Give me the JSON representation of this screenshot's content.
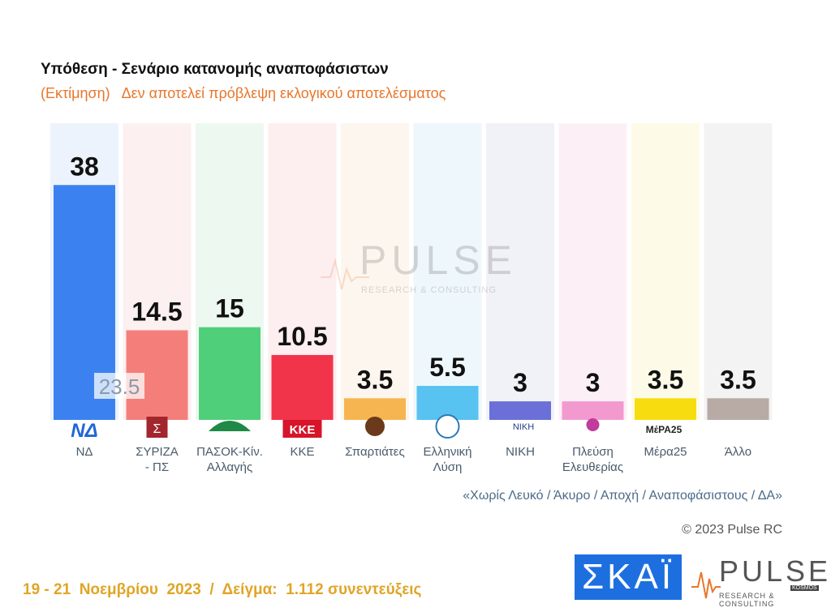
{
  "header": {
    "title": "Υπόθεση - Σενάριο κατανομής αναποφάσιστων",
    "subtitle": "(Εκτίμηση)   Δεν αποτελεί πρόβλεψη εκλογικού αποτελέσματος"
  },
  "chart_data": {
    "type": "bar",
    "categories": [
      "ΝΔ",
      "ΣΥΡΙΖΑ - ΠΣ",
      "ΠΑΣΟΚ-Κίν. Αλλαγής",
      "ΚΚΕ",
      "Σπαρτιάτες",
      "Ελληνική Λύση",
      "ΝΙΚΗ",
      "Πλεύση Ελευθερίας",
      "Μέρα25",
      "Άλλο"
    ],
    "category_lines": [
      [
        "ΝΔ"
      ],
      [
        "ΣΥΡΙΖΑ",
        "- ΠΣ"
      ],
      [
        "ΠΑΣΟΚ-Κίν.",
        "Αλλαγής"
      ],
      [
        "ΚΚΕ"
      ],
      [
        "Σπαρτιάτες"
      ],
      [
        "Ελληνική",
        "Λύση"
      ],
      [
        "ΝΙΚΗ"
      ],
      [
        "Πλεύση",
        "Ελευθερίας"
      ],
      [
        "Μέρα25"
      ],
      [
        "Άλλο"
      ]
    ],
    "values": [
      38,
      14.5,
      15,
      10.5,
      3.5,
      5.5,
      3,
      3,
      3.5,
      3.5
    ],
    "value_labels": [
      "38",
      "14.5",
      "15",
      "10.5",
      "3.5",
      "5.5",
      "3",
      "3",
      "3.5",
      "3.5"
    ],
    "colors": [
      "#3b82f0",
      "#f47f7a",
      "#4fcf7a",
      "#f2344a",
      "#f6b550",
      "#58c2f1",
      "#6b6fd8",
      "#f29ad0",
      "#f7dd10",
      "#b8aaa4"
    ],
    "background_colors": [
      "#edf3fd",
      "#fdf0f0",
      "#edf8f0",
      "#fdeef0",
      "#fdf6ee",
      "#eef7fc",
      "#f1f1f8",
      "#fcf0f6",
      "#fdfbe8",
      "#f4f3f3"
    ],
    "annotations": [
      {
        "category": "ΝΔ",
        "text": "23.5"
      }
    ],
    "ylim": [
      0,
      48
    ],
    "title": "Υπόθεση - Σενάριο κατανομής αναποφάσιστων",
    "xlabel": "",
    "ylabel": "",
    "grid": false,
    "legend": "none"
  },
  "logos": [
    "ΝΔ",
    "Σ",
    "ΚΚΕ",
    "ΝΙΚΗ",
    "ΜέΡΑ25"
  ],
  "watermark": {
    "word": "PULSE",
    "sub": "RESEARCH & CONSULTING"
  },
  "note": "«Χωρίς Λευκό / Άκυρο / Αποχή / Αναποφάσιστους / ΔΑ»",
  "copyright": "© 2023 Pulse RC",
  "footer": "19 - 21  Νοεμβρίου  2023  /  Δείγμα:  1.112 συνεντεύξεις",
  "brand": {
    "skai": "ΣΚΑΪ",
    "pulse": "PULSE",
    "pulse_sub": "RESEARCH & CONSULTING",
    "pulse_kosmon": "KOSMOS"
  }
}
